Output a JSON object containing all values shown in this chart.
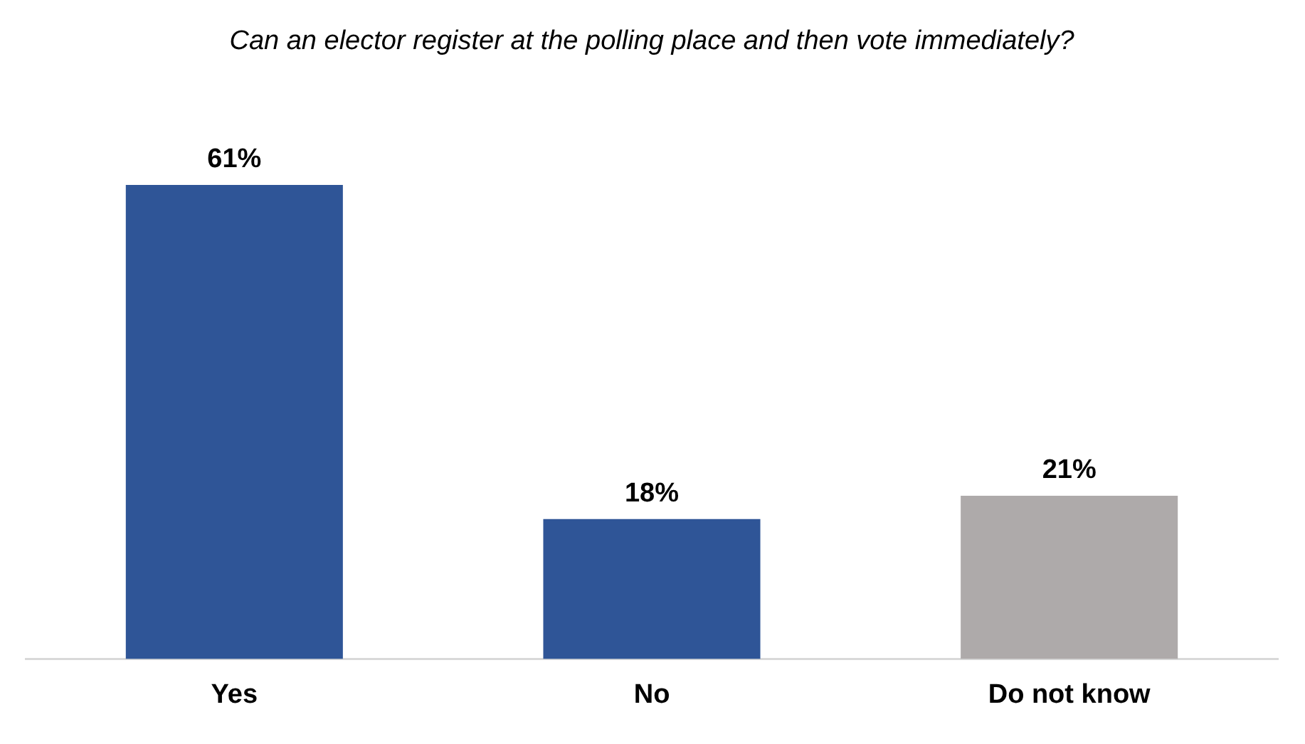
{
  "chart_data": {
    "type": "bar",
    "title": "Can an elector register at the polling place and then vote immediately?",
    "categories": [
      "Yes",
      "No",
      "Do not know"
    ],
    "values": [
      61,
      18,
      21
    ],
    "colors": [
      "#2f5597",
      "#2f5597",
      "#aeaaaa"
    ],
    "value_labels": [
      "61%",
      "18%",
      "21%"
    ],
    "grid": false,
    "legend": false
  }
}
